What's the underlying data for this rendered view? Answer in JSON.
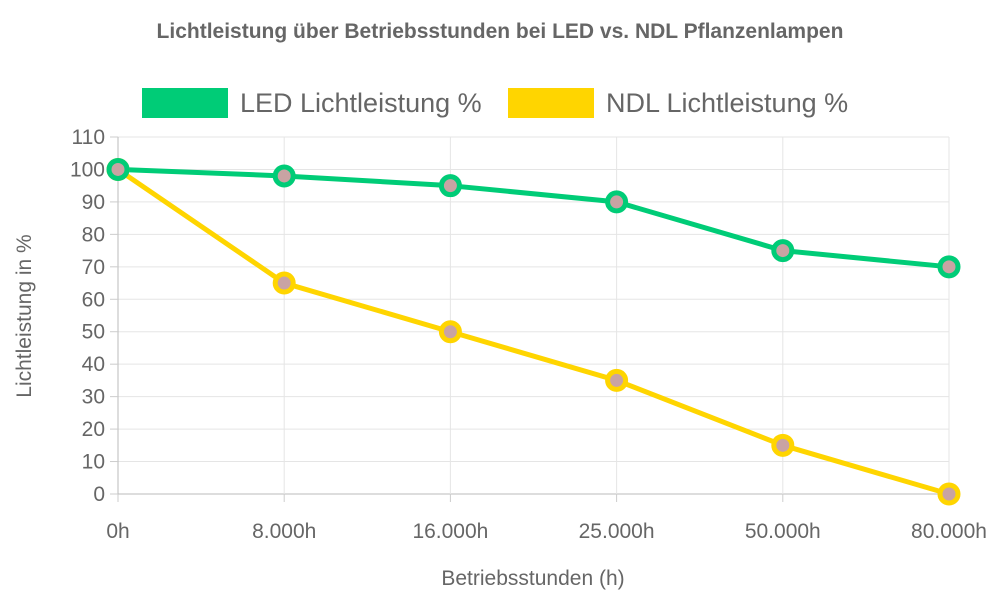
{
  "chart_data": {
    "type": "line",
    "title": "Lichtleistung über Betriebsstunden bei LED vs. NDL Pflanzenlampen",
    "xlabel": "Betriebsstunden (h)",
    "ylabel": "Lichtleistung in %",
    "categories": [
      "0h",
      "8.000h",
      "16.000h",
      "25.000h",
      "50.000h",
      "80.000h"
    ],
    "ylim": [
      0,
      110
    ],
    "yticks": [
      0,
      10,
      20,
      30,
      40,
      50,
      60,
      70,
      80,
      90,
      100,
      110
    ],
    "grid": true,
    "legend_position": "top",
    "series": [
      {
        "name": "LED Lichtleistung %",
        "color": "#00cc77",
        "values": [
          100,
          98,
          95,
          90,
          75,
          70
        ]
      },
      {
        "name": "NDL Lichtleistung %",
        "color": "#ffd500",
        "values": [
          100,
          65,
          50,
          35,
          15,
          0
        ]
      }
    ]
  }
}
